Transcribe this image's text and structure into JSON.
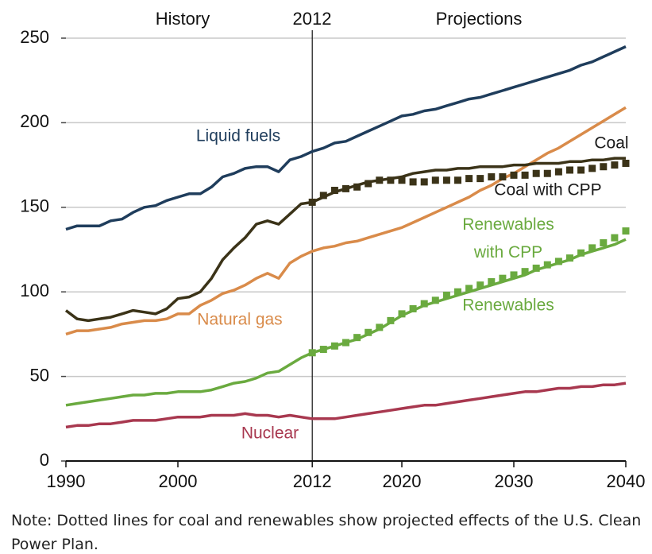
{
  "chart_data": {
    "type": "line",
    "annotations": [
      "History",
      "2012",
      "Projections"
    ],
    "divider": 2012,
    "note": "Note: Dotted lines for coal and renewables show projected effects of the U.S. Clean Power Plan.",
    "xlim": [
      1990,
      2040
    ],
    "xticks": [
      1990,
      2000,
      2012,
      2020,
      2030,
      2040
    ],
    "ylim": [
      0,
      250
    ],
    "yticks": [
      0,
      50,
      100,
      150,
      200,
      250
    ],
    "grid": true,
    "x": [
      1990,
      1991,
      1992,
      1993,
      1994,
      1995,
      1996,
      1997,
      1998,
      1999,
      2000,
      2001,
      2002,
      2003,
      2004,
      2005,
      2006,
      2007,
      2008,
      2009,
      2010,
      2011,
      2012,
      2013,
      2014,
      2015,
      2016,
      2017,
      2018,
      2019,
      2020,
      2021,
      2022,
      2023,
      2024,
      2025,
      2026,
      2027,
      2028,
      2029,
      2030,
      2031,
      2032,
      2033,
      2034,
      2035,
      2036,
      2037,
      2038,
      2039,
      2040
    ],
    "series": [
      {
        "name": "Liquid fuels",
        "color": "#1f3d5c",
        "marker": "none",
        "values": [
          137,
          139,
          139,
          139,
          142,
          143,
          147,
          150,
          151,
          154,
          156,
          158,
          158,
          162,
          168,
          170,
          173,
          174,
          174,
          171,
          178,
          180,
          183,
          185,
          188,
          189,
          192,
          195,
          198,
          201,
          204,
          205,
          207,
          208,
          210,
          212,
          214,
          215,
          217,
          219,
          221,
          223,
          225,
          227,
          229,
          231,
          234,
          236,
          239,
          242,
          245
        ]
      },
      {
        "name": "Coal",
        "color": "#3b3318",
        "marker": "none",
        "values": [
          89,
          84,
          83,
          84,
          85,
          87,
          89,
          88,
          87,
          90,
          96,
          97,
          100,
          108,
          119,
          126,
          132,
          140,
          142,
          140,
          146,
          152,
          153,
          156,
          159,
          161,
          163,
          165,
          166,
          167,
          168,
          170,
          171,
          172,
          172,
          173,
          173,
          174,
          174,
          174,
          175,
          175,
          176,
          176,
          176,
          177,
          177,
          178,
          178,
          179,
          179
        ]
      },
      {
        "name": "Coal with CPP",
        "color": "#3b3318",
        "marker": "square",
        "values": [
          null,
          null,
          null,
          null,
          null,
          null,
          null,
          null,
          null,
          null,
          null,
          null,
          null,
          null,
          null,
          null,
          null,
          null,
          null,
          null,
          null,
          null,
          153,
          157,
          160,
          161,
          162,
          164,
          166,
          166,
          166,
          165,
          165,
          166,
          166,
          166,
          167,
          167,
          168,
          168,
          169,
          169,
          170,
          170,
          171,
          172,
          172,
          173,
          174,
          175,
          176
        ]
      },
      {
        "name": "Natural gas",
        "color": "#d98b4a",
        "marker": "none",
        "values": [
          75,
          77,
          77,
          78,
          79,
          81,
          82,
          83,
          83,
          84,
          87,
          87,
          92,
          95,
          99,
          101,
          104,
          108,
          111,
          108,
          117,
          121,
          124,
          126,
          127,
          129,
          130,
          132,
          134,
          136,
          138,
          141,
          144,
          147,
          150,
          153,
          156,
          160,
          163,
          167,
          170,
          174,
          178,
          182,
          185,
          189,
          193,
          197,
          201,
          205,
          209
        ]
      },
      {
        "name": "Renewables with CPP",
        "color": "#6aaa3f",
        "marker": "square",
        "values": [
          null,
          null,
          null,
          null,
          null,
          null,
          null,
          null,
          null,
          null,
          null,
          null,
          null,
          null,
          null,
          null,
          null,
          null,
          null,
          null,
          null,
          null,
          64,
          66,
          68,
          70,
          73,
          76,
          79,
          83,
          87,
          90,
          93,
          95,
          98,
          100,
          102,
          104,
          106,
          108,
          110,
          112,
          114,
          116,
          118,
          120,
          123,
          126,
          129,
          132,
          136
        ]
      },
      {
        "name": "Renewables",
        "color": "#6aaa3f",
        "marker": "none",
        "values": [
          33,
          34,
          35,
          36,
          37,
          38,
          39,
          39,
          40,
          40,
          41,
          41,
          41,
          42,
          44,
          46,
          47,
          49,
          52,
          53,
          57,
          61,
          64,
          66,
          68,
          70,
          72,
          75,
          78,
          82,
          86,
          89,
          92,
          94,
          96,
          98,
          100,
          102,
          104,
          106,
          108,
          110,
          113,
          115,
          117,
          119,
          122,
          124,
          126,
          128,
          131
        ]
      },
      {
        "name": "Nuclear",
        "color": "#a8384f",
        "marker": "none",
        "values": [
          20,
          21,
          21,
          22,
          22,
          23,
          24,
          24,
          24,
          25,
          26,
          26,
          26,
          27,
          27,
          27,
          28,
          27,
          27,
          26,
          27,
          26,
          25,
          25,
          25,
          26,
          27,
          28,
          29,
          30,
          31,
          32,
          33,
          33,
          34,
          35,
          36,
          37,
          38,
          39,
          40,
          41,
          41,
          42,
          43,
          43,
          44,
          44,
          45,
          45,
          46
        ]
      }
    ]
  }
}
